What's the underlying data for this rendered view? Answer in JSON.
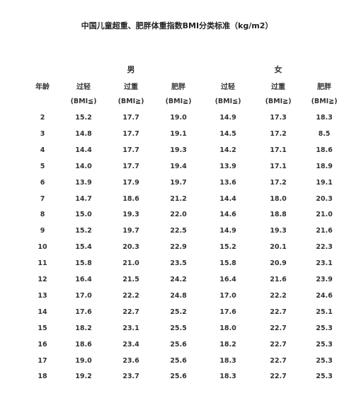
{
  "title": "中国儿童超重、肥胖体重指数BMI分类标准（kg/m2）",
  "genders": [
    "男",
    "女"
  ],
  "age_header": "年龄",
  "column_headers": [
    "过轻",
    "过重",
    "肥胖",
    "过轻",
    "过重",
    "肥胖"
  ],
  "column_subheaders": [
    "(BMI≦)",
    "(BMI≧)",
    "(BMI≧)",
    "(BMI≦)",
    "(BMI≧)",
    "(BMI≧)"
  ],
  "rows": [
    [
      "2",
      "15.2",
      "17.7",
      "19.0",
      "14.9",
      "17.3",
      "18.3"
    ],
    [
      "3",
      "14.8",
      "17.7",
      "19.1",
      "14.5",
      "17.2",
      "8.5"
    ],
    [
      "4",
      "14.4",
      "17.7",
      "19.3",
      "14.2",
      "17.1",
      "18.6"
    ],
    [
      "5",
      "14.0",
      "17.7",
      "19.4",
      "13.9",
      "17.1",
      "18.9"
    ],
    [
      "6",
      "13.9",
      "17.9",
      "19.7",
      "13.6",
      "17.2",
      "19.1"
    ],
    [
      "7",
      "14.7",
      "18.6",
      "21.2",
      "14.4",
      "18.0",
      "20.3"
    ],
    [
      "8",
      "15.0",
      "19.3",
      "22.0",
      "14.6",
      "18.8",
      "21.0"
    ],
    [
      "9",
      "15.2",
      "19.7",
      "22.5",
      "14.9",
      "19.3",
      "21.6"
    ],
    [
      "10",
      "15.4",
      "20.3",
      "22.9",
      "15.2",
      "20.1",
      "22.3"
    ],
    [
      "11",
      "15.8",
      "21.0",
      "23.5",
      "15.8",
      "20.9",
      "23.1"
    ],
    [
      "12",
      "16.4",
      "21.5",
      "24.2",
      "16.4",
      "21.6",
      "23.9"
    ],
    [
      "13",
      "17.0",
      "22.2",
      "24.8",
      "17.0",
      "22.2",
      "24.6"
    ],
    [
      "14",
      "17.6",
      "22.7",
      "25.2",
      "17.6",
      "22.7",
      "25.1"
    ],
    [
      "15",
      "18.2",
      "23.1",
      "25.5",
      "18.0",
      "22.7",
      "25.3"
    ],
    [
      "16",
      "18.6",
      "23.4",
      "25.6",
      "18.2",
      "22.7",
      "25.3"
    ],
    [
      "17",
      "19.0",
      "23.6",
      "25.6",
      "18.3",
      "22.7",
      "25.3"
    ],
    [
      "18",
      "19.2",
      "23.7",
      "25.6",
      "18.3",
      "22.7",
      "25.3"
    ]
  ]
}
